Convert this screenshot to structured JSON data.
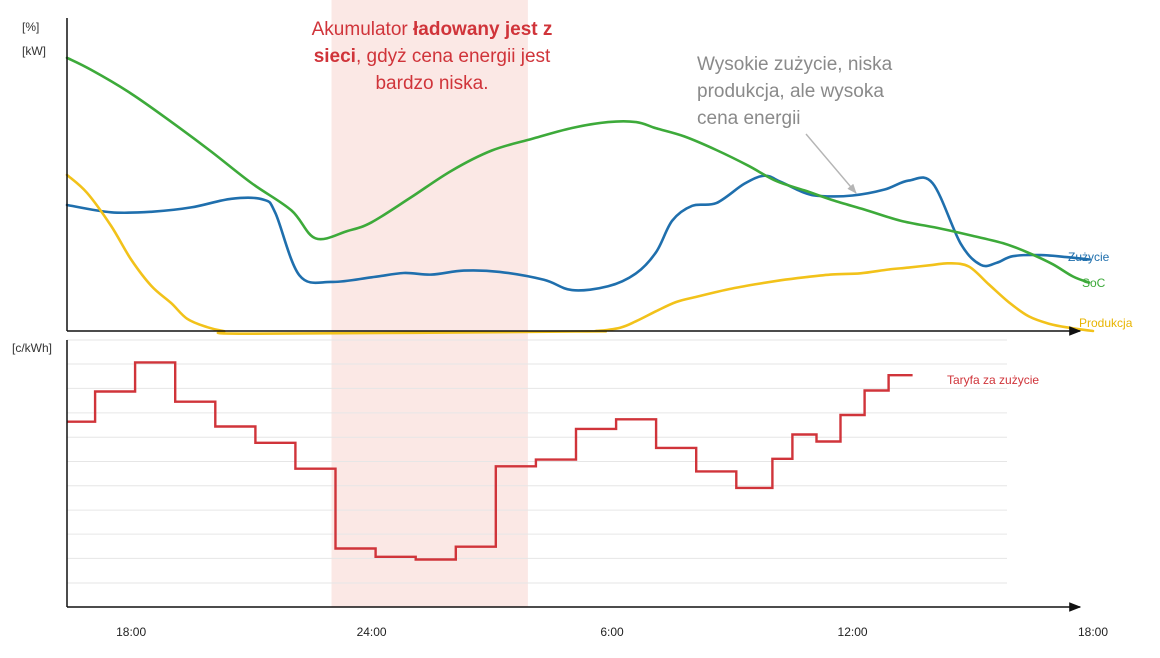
{
  "chart_data": [
    {
      "type": "line",
      "y_units": [
        "[%]",
        "[kW]"
      ],
      "x_ticks": [
        "18:00",
        "24:00",
        "6:00",
        "12:00",
        "18:00"
      ],
      "x_tick_hours": [
        18,
        24,
        30,
        36,
        42
      ],
      "xlim": [
        16.4,
        42
      ],
      "ylim": [
        0,
        100
      ],
      "highlight": {
        "from": 23.0,
        "to": 27.9,
        "color": "#fbe8e5"
      },
      "series": [
        {
          "name": "Zużycie",
          "color": "#1f6fad",
          "x": [
            16.4,
            17.5,
            18.5,
            19.5,
            20.5,
            21.3,
            21.6,
            22.2,
            23.0,
            24.0,
            24.8,
            25.5,
            26.3,
            27.2,
            28.3,
            29.0,
            29.9,
            30.6,
            31.1,
            31.5,
            32.0,
            32.6,
            33.3,
            33.8,
            34.2,
            34.8,
            35.2,
            36.0,
            36.8,
            37.4,
            38.0,
            38.7,
            39.2,
            39.6,
            40.0,
            40.7,
            41.4,
            41.9
          ],
          "y": [
            46.5,
            43.8,
            44.0,
            45.6,
            48.8,
            48.5,
            43.5,
            20.5,
            18.1,
            19.8,
            21.4,
            20.8,
            22.3,
            21.8,
            18.9,
            15.1,
            16.5,
            21.3,
            29.1,
            40.7,
            46.2,
            47.2,
            54.3,
            57.3,
            55.1,
            51.0,
            49.8,
            50.0,
            52.2,
            55.5,
            54.5,
            32.2,
            24.4,
            25.2,
            27.6,
            28.0,
            27.2,
            26.4
          ]
        },
        {
          "name": "SoC",
          "color": "#3daa3a",
          "x": [
            16.4,
            17.0,
            18.0,
            19.0,
            20.0,
            21.0,
            22.0,
            22.6,
            23.4,
            24.0,
            25.0,
            26.0,
            27.0,
            28.0,
            29.0,
            29.9,
            30.6,
            31.1,
            31.8,
            32.6,
            33.4,
            34.1,
            34.8,
            35.5,
            36.3,
            37.2,
            38.2,
            39.0,
            39.8,
            40.4,
            41.0,
            41.5,
            41.9
          ],
          "y": [
            100.8,
            96.4,
            87.6,
            77.2,
            66.2,
            54.6,
            44.5,
            34.2,
            36.9,
            40.1,
            49.5,
            59.2,
            66.6,
            70.9,
            74.9,
            77.1,
            77.1,
            74.8,
            71.8,
            66.8,
            61.0,
            55.3,
            51.9,
            48.3,
            44.8,
            40.7,
            37.8,
            35.1,
            32.2,
            28.8,
            24.6,
            20.1,
            17.9
          ]
        },
        {
          "name": "Produkcja",
          "color": "#f2c21a",
          "x": [
            16.4,
            16.9,
            17.5,
            18.0,
            18.5,
            19.0,
            19.4,
            19.9,
            20.3,
            21.0,
            29.1,
            29.6,
            30.2,
            30.6,
            31.1,
            31.6,
            32.1,
            32.6,
            33.0,
            33.6,
            34.2,
            34.8,
            35.5,
            36.2,
            36.9,
            37.4,
            38.0,
            38.4,
            38.9,
            39.4,
            39.9,
            40.4,
            40.9,
            41.4,
            42.0
          ],
          "y": [
            57.6,
            51.0,
            38.8,
            26.4,
            16.7,
            10.3,
            4.5,
            1.4,
            0.0,
            -1.0,
            -0.2,
            0.0,
            1.2,
            3.6,
            7.3,
            10.7,
            12.6,
            14.4,
            15.7,
            17.3,
            18.7,
            19.8,
            20.9,
            21.3,
            22.7,
            23.4,
            24.4,
            25.0,
            23.8,
            17.2,
            10.6,
            5.4,
            2.7,
            1.2,
            0.0
          ]
        }
      ]
    },
    {
      "type": "line",
      "step": true,
      "y_unit": "[c/kWh]",
      "ylim": [
        0,
        100
      ],
      "series": [
        {
          "name": "Taryfa za zużycie",
          "color": "#d0343a",
          "x": [
            16.4,
            17.1,
            18.1,
            19.1,
            20.1,
            21.1,
            22.1,
            23.1,
            24.1,
            25.1,
            26.1,
            27.1,
            28.1,
            29.1,
            30.1,
            31.1,
            32.1,
            33.1,
            34.0,
            34.5,
            35.1,
            35.7,
            36.3,
            36.9,
            37.5
          ],
          "y": [
            69.4,
            80.7,
            91.6,
            76.9,
            67.6,
            61.5,
            51.8,
            21.9,
            18.8,
            17.8,
            22.6,
            52.7,
            55.2,
            66.7,
            70.3,
            59.6,
            50.8,
            44.6,
            55.5,
            64.6,
            62.0,
            71.9,
            81.1,
            86.8,
            86.8
          ]
        }
      ]
    }
  ],
  "annotations": {
    "charging": {
      "line1": [
        "Akumulator ",
        "ładowany jest z"
      ],
      "line2": [
        "sieci",
        ", gdyż cena energii jest"
      ],
      "line3": "bardzo niska."
    },
    "high_usage": {
      "lines": [
        "Wysokie zużycie, niska",
        "produkcja, ale wysoka",
        "cena energii"
      ]
    }
  }
}
